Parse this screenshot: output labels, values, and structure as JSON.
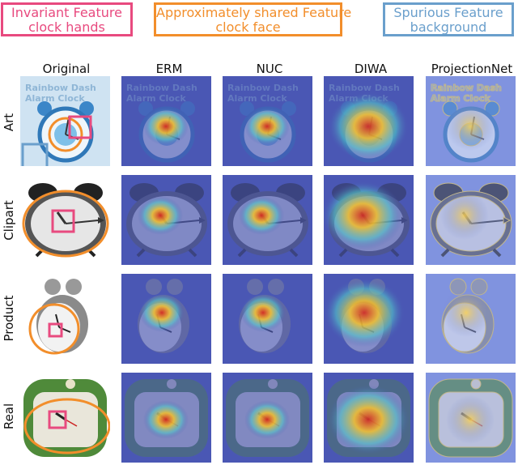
{
  "legend": {
    "invariant": {
      "line1": "Invariant Feature",
      "line2": "clock hands",
      "color": "#e84a7f"
    },
    "approx": {
      "line1": "Approximately shared Feature",
      "line2": "clock face",
      "color": "#f28e2b"
    },
    "spurious": {
      "line1": "Spurious Feature",
      "line2": "background",
      "color": "#6a9fcc"
    }
  },
  "columns": [
    "Original",
    "ERM",
    "NUC",
    "DIWA",
    "ProjectionNet"
  ],
  "rows": [
    "Art",
    "Clipart",
    "Product",
    "Real"
  ],
  "art_text": "Rainbow Dash Alarm Clock"
}
